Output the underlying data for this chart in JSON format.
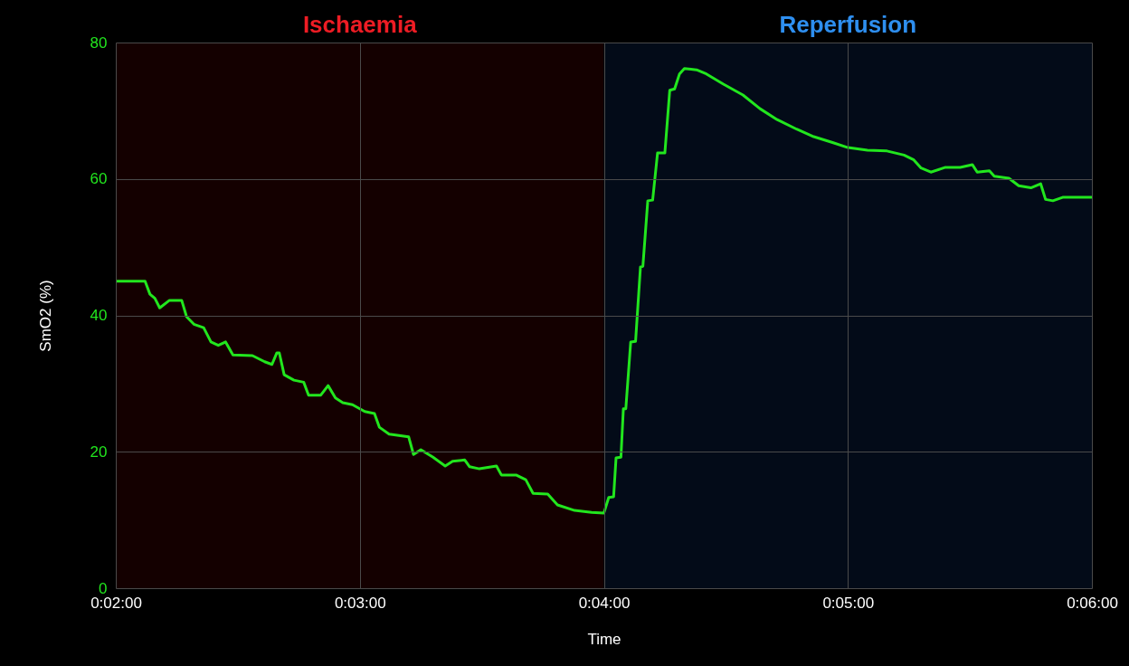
{
  "chart_data": {
    "type": "line",
    "xlabel": "Time",
    "ylabel": "SmO2 (%)",
    "x": [
      2.0,
      2.12,
      2.14,
      2.16,
      2.18,
      2.22,
      2.27,
      2.29,
      2.32,
      2.36,
      2.39,
      2.42,
      2.45,
      2.48,
      2.56,
      2.61,
      2.64,
      2.66,
      2.67,
      2.69,
      2.73,
      2.77,
      2.79,
      2.84,
      2.87,
      2.9,
      2.93,
      2.97,
      3.02,
      3.06,
      3.08,
      3.12,
      3.2,
      3.22,
      3.25,
      3.3,
      3.35,
      3.38,
      3.43,
      3.45,
      3.49,
      3.56,
      3.58,
      3.64,
      3.68,
      3.71,
      3.77,
      3.81,
      3.88,
      3.95,
      4.0,
      4.02,
      4.04,
      4.05,
      4.07,
      4.08,
      4.09,
      4.11,
      4.13,
      4.15,
      4.16,
      4.18,
      4.2,
      4.22,
      4.25,
      4.27,
      4.29,
      4.31,
      4.33,
      4.38,
      4.42,
      4.49,
      4.57,
      4.64,
      4.71,
      4.79,
      4.86,
      4.94,
      5.0,
      5.08,
      5.16,
      5.23,
      5.27,
      5.3,
      5.34,
      5.4,
      5.46,
      5.51,
      5.53,
      5.58,
      5.6,
      5.66,
      5.7,
      5.75,
      5.79,
      5.81,
      5.84,
      5.88,
      6.0
    ],
    "series": [
      {
        "color": "#22e61e",
        "values": [
          45.0,
          45.0,
          43.1,
          42.5,
          41.1,
          42.2,
          42.2,
          39.8,
          38.7,
          38.2,
          36.1,
          35.6,
          36.1,
          34.2,
          34.1,
          33.2,
          32.8,
          34.5,
          34.5,
          31.3,
          30.5,
          30.2,
          28.3,
          28.3,
          29.7,
          27.9,
          27.2,
          26.9,
          25.9,
          25.6,
          23.6,
          22.6,
          22.2,
          19.6,
          20.3,
          19.2,
          17.9,
          18.6,
          18.8,
          17.8,
          17.5,
          17.9,
          16.6,
          16.6,
          15.9,
          13.9,
          13.8,
          12.2,
          11.4,
          11.1,
          11.0,
          13.3,
          13.4,
          19.1,
          19.2,
          26.3,
          26.3,
          36.1,
          36.2,
          47.1,
          47.2,
          56.8,
          56.9,
          63.8,
          63.8,
          73.0,
          73.2,
          75.4,
          76.2,
          76.0,
          75.4,
          73.9,
          72.3,
          70.3,
          68.7,
          67.3,
          66.2,
          65.3,
          64.6,
          64.2,
          64.1,
          63.5,
          62.8,
          61.6,
          61.0,
          61.7,
          61.7,
          62.1,
          61.0,
          61.2,
          60.4,
          60.1,
          59.0,
          58.7,
          59.3,
          57.0,
          56.8,
          57.3,
          57.3
        ]
      }
    ],
    "xlim": [
      2,
      6
    ],
    "xticks": [
      {
        "value": 2,
        "label": "0:02:00"
      },
      {
        "value": 3,
        "label": "0:03:00"
      },
      {
        "value": 4,
        "label": "0:04:00"
      },
      {
        "value": 5,
        "label": "0:05:00"
      },
      {
        "value": 6,
        "label": "0:06:00"
      }
    ],
    "ylim": [
      0,
      80
    ],
    "yticks": [
      0,
      20,
      40,
      60,
      80
    ],
    "grid": true,
    "line_style": "solid",
    "marker": "none",
    "bands": [
      {
        "axis": "x",
        "from": 2,
        "to": 4,
        "label": "Ischaemia",
        "color": "#140000"
      },
      {
        "axis": "x",
        "from": 4,
        "to": 6,
        "label": "Reperfusion",
        "color": "#030b18"
      }
    ]
  }
}
